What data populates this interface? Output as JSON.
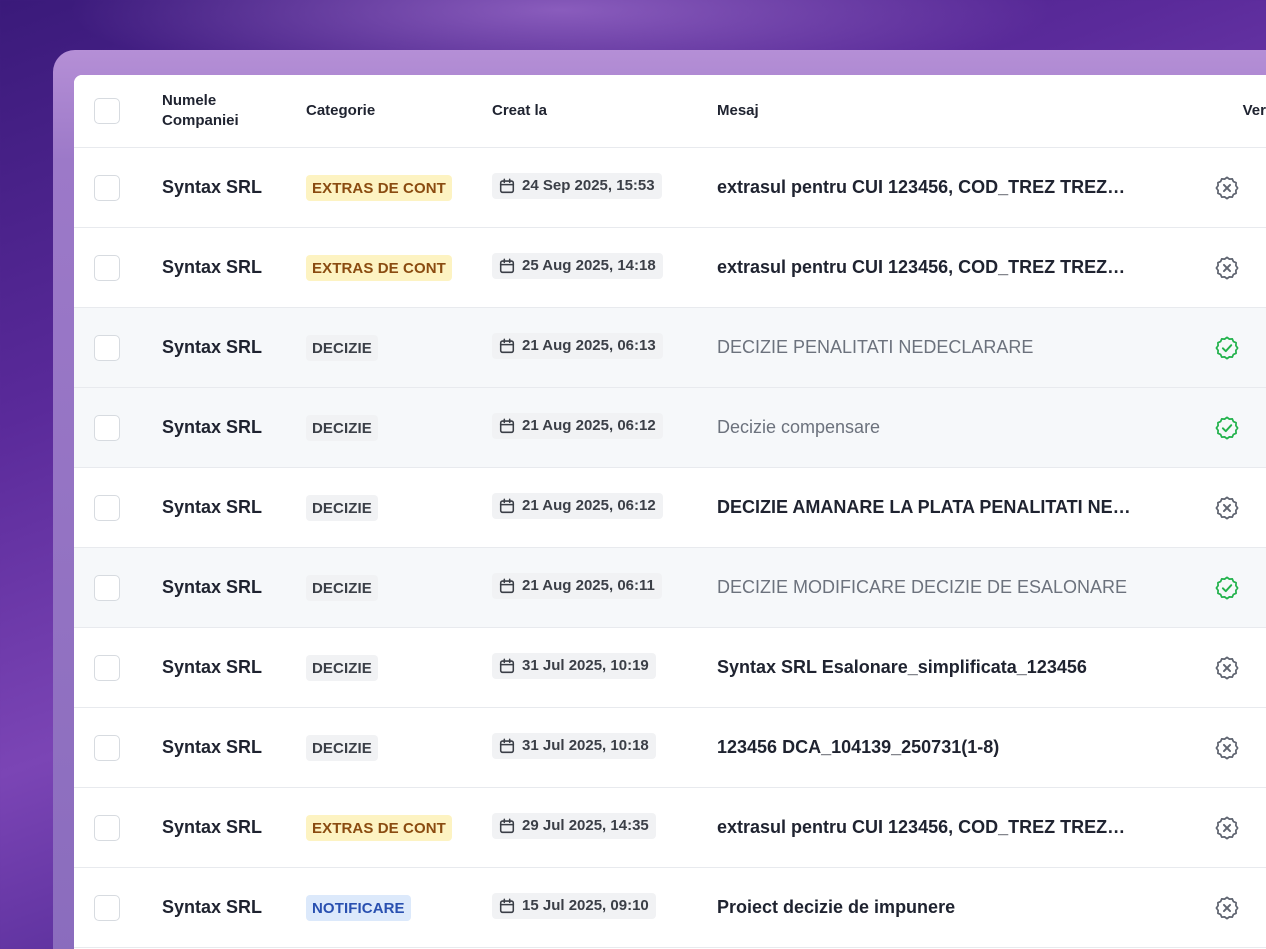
{
  "table": {
    "headers": {
      "company_line1": "Numele",
      "company_line2": "Companiei",
      "category": "Categorie",
      "created": "Creat la",
      "message": "Mesaj",
      "verified": "Verificat"
    },
    "rows": [
      {
        "company": "Syntax SRL",
        "category": "EXTRAS DE CONT",
        "category_type": "extras",
        "date": "24 Sep 2025, 15:53",
        "message": "extrasul pentru CUI 123456, COD_TREZ TREZ…",
        "verified": false
      },
      {
        "company": "Syntax SRL",
        "category": "EXTRAS DE CONT",
        "category_type": "extras",
        "date": "25 Aug 2025, 14:18",
        "message": "extrasul pentru CUI 123456, COD_TREZ TREZ…",
        "verified": false
      },
      {
        "company": "Syntax SRL",
        "category": "DECIZIE",
        "category_type": "decizie",
        "date": "21 Aug 2025, 06:13",
        "message": "DECIZIE PENALITATI NEDECLARARE",
        "verified": true
      },
      {
        "company": "Syntax SRL",
        "category": "DECIZIE",
        "category_type": "decizie",
        "date": "21 Aug 2025, 06:12",
        "message": "Decizie compensare",
        "verified": true
      },
      {
        "company": "Syntax SRL",
        "category": "DECIZIE",
        "category_type": "decizie",
        "date": "21 Aug 2025, 06:12",
        "message": "DECIZIE AMANARE LA PLATA PENALITATI NED…",
        "verified": false
      },
      {
        "company": "Syntax SRL",
        "category": "DECIZIE",
        "category_type": "decizie",
        "date": "21 Aug 2025, 06:11",
        "message": "DECIZIE MODIFICARE DECIZIE DE ESALONARE",
        "verified": true
      },
      {
        "company": "Syntax SRL",
        "category": "DECIZIE",
        "category_type": "decizie",
        "date": "31 Jul 2025, 10:19",
        "message": "Syntax SRL Esalonare_simplificata_123456",
        "verified": false
      },
      {
        "company": "Syntax SRL",
        "category": "DECIZIE",
        "category_type": "decizie",
        "date": "31 Jul 2025, 10:18",
        "message": "123456 DCA_104139_250731(1-8)",
        "verified": false
      },
      {
        "company": "Syntax SRL",
        "category": "EXTRAS DE CONT",
        "category_type": "extras",
        "date": "29 Jul 2025, 14:35",
        "message": "extrasul pentru CUI 123456, COD_TREZ TREZ…",
        "verified": false
      },
      {
        "company": "Syntax SRL",
        "category": "NOTIFICARE",
        "category_type": "notificare",
        "date": "15 Jul 2025, 09:10",
        "message": "Proiect decizie de impunere",
        "verified": false
      }
    ]
  },
  "icons": {
    "date": "calendar-icon",
    "verified_true": "check-badge-icon",
    "verified_false": "x-badge-icon"
  },
  "colors": {
    "verified_green": "#22b24c",
    "unverified_gray": "#5f6470",
    "extras_bg": "#fdf3c2",
    "notificare_bg": "#dce9fb"
  }
}
